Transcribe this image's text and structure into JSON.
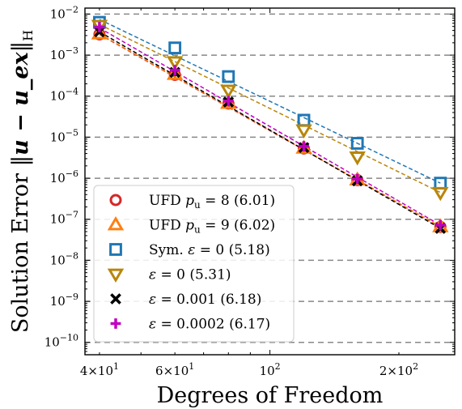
{
  "chart_data": {
    "type": "scatter",
    "xscale": "log",
    "yscale": "log",
    "xlabel": "Degrees of Freedom",
    "ylabel": "Solution Error ‖u − u_ex‖_H",
    "xlim": [
      37,
      270
    ],
    "ylim": [
      5e-11,
      0.014
    ],
    "grid": "y-major dashed",
    "legend_position": "lower-left",
    "x_ticks": [
      {
        "value": 40,
        "mantissa": "4",
        "exp": "1"
      },
      {
        "value": 60,
        "mantissa": "6",
        "exp": "1"
      },
      {
        "value": 100,
        "mantissa": "",
        "exp": "2"
      },
      {
        "value": 200,
        "mantissa": "2",
        "exp": "2"
      }
    ],
    "y_ticks": [
      {
        "value": 0.01,
        "exp": "−2"
      },
      {
        "value": 0.001,
        "exp": "−3"
      },
      {
        "value": 0.0001,
        "exp": "−4"
      },
      {
        "value": 1e-05,
        "exp": "−5"
      },
      {
        "value": 1e-06,
        "exp": "−6"
      },
      {
        "value": 1e-07,
        "exp": "−7"
      },
      {
        "value": 1e-08,
        "exp": "−8"
      },
      {
        "value": 1e-09,
        "exp": "−9"
      },
      {
        "value": 1e-10,
        "exp": "−10"
      }
    ],
    "x": [
      40,
      60,
      80,
      120,
      160,
      250
    ],
    "series": [
      {
        "name": "UFD p_u = 8 (6.01)",
        "label_main": "UFD ",
        "label_math": "p",
        "label_sub": "u",
        "label_rest": " = 8 (6.01)",
        "marker": "circle",
        "color": "#d62728",
        "values": [
          0.0032,
          0.00033,
          6.6e-05,
          5.3e-06,
          9e-07,
          6.5e-08
        ],
        "fit": [
          0.0032,
          6.5e-08
        ]
      },
      {
        "name": "UFD p_u = 9 (6.02)",
        "label_main": "UFD ",
        "label_math": "p",
        "label_sub": "u",
        "label_rest": " = 9 (6.02)",
        "marker": "triangle-up",
        "color": "#ff7f0e",
        "values": [
          0.0033,
          0.00034,
          6.7e-05,
          5.4e-06,
          9.1e-07,
          6.6e-08
        ],
        "fit": [
          0.0033,
          6.6e-08
        ]
      },
      {
        "name": "Sym. ε = 0 (5.18)",
        "label_main": "Sym. ",
        "label_math": "ε",
        "label_sub": "",
        "label_rest": " = 0 (5.18)",
        "marker": "square",
        "color": "#1f77b4",
        "values": [
          0.0063,
          0.0015,
          0.0003,
          2.6e-05,
          7.1e-06,
          7.6e-07
        ],
        "fit": [
          0.0074,
          7.6e-07
        ]
      },
      {
        "name": "ε = 0 (5.31)",
        "label_main": "",
        "label_math": "ε",
        "label_sub": "",
        "label_rest": " = 0 (5.31)",
        "marker": "triangle-down",
        "color": "#b8860b",
        "values": [
          0.0053,
          0.00069,
          0.00014,
          1.5e-05,
          3.3e-06,
          4.5e-07
        ],
        "fit": [
          0.0056,
          4.5e-07
        ]
      },
      {
        "name": "ε = 0.001 (6.18)",
        "label_main": "",
        "label_math": "ε",
        "label_sub": "",
        "label_rest": " = 0.001 (6.18)",
        "marker": "x",
        "color": "#000000",
        "values": [
          0.0037,
          0.00038,
          7.2e-05,
          5.6e-06,
          8.6e-07,
          6e-08
        ],
        "fit": [
          0.0037,
          6e-08
        ]
      },
      {
        "name": "ε = 0.0002 (6.17)",
        "label_main": "",
        "label_math": "ε",
        "label_sub": "",
        "label_rest": " = 0.0002 (6.17)",
        "marker": "plus",
        "color": "#c000c0",
        "values": [
          0.0048,
          0.00043,
          7.6e-05,
          6e-06,
          9.6e-07,
          7.2e-08
        ],
        "fit": [
          0.0046,
          7.2e-08
        ]
      }
    ]
  }
}
